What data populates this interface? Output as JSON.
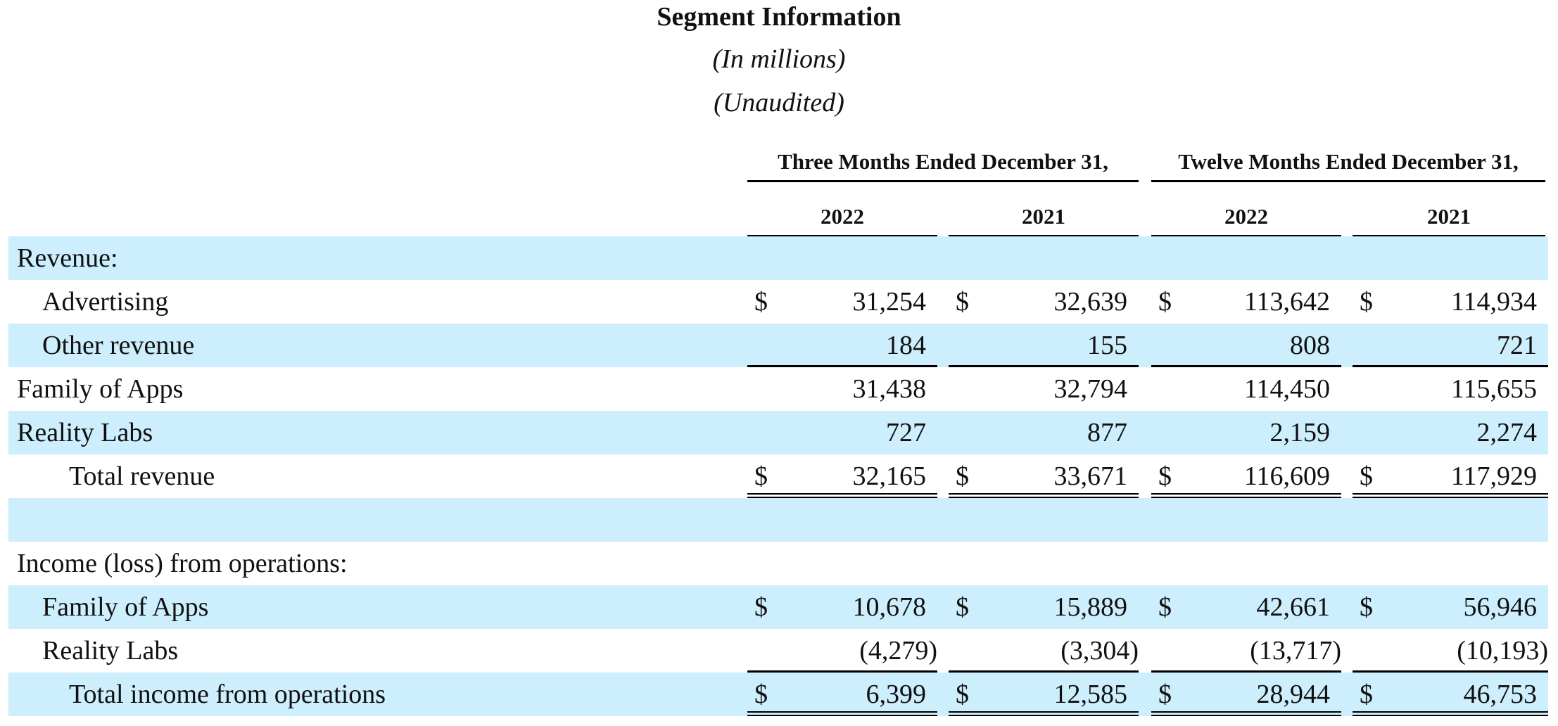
{
  "title": "Segment Information",
  "subtitle1": "(In millions)",
  "subtitle2": "(Unaudited)",
  "group_headers": [
    "Three Months Ended December 31,",
    "Twelve Months Ended December 31,"
  ],
  "year_headers": [
    "2022",
    "2021",
    "2022",
    "2021"
  ],
  "rows": [
    {
      "label": "Revenue:",
      "values": [
        "",
        "",
        "",
        ""
      ],
      "dollar": false
    },
    {
      "label": "Advertising",
      "values": [
        "31,254",
        "32,639",
        "113,642",
        "114,934"
      ],
      "dollar": true
    },
    {
      "label": "Other revenue",
      "values": [
        "184",
        "155",
        "808",
        "721"
      ],
      "dollar": false
    },
    {
      "label": "Family of Apps",
      "values": [
        "31,438",
        "32,794",
        "114,450",
        "115,655"
      ],
      "dollar": false
    },
    {
      "label": "Reality Labs",
      "values": [
        "727",
        "877",
        "2,159",
        "2,274"
      ],
      "dollar": false
    },
    {
      "label": "Total revenue",
      "values": [
        "32,165",
        "33,671",
        "116,609",
        "117,929"
      ],
      "dollar": true
    },
    {
      "label": "",
      "values": [
        "",
        "",
        "",
        ""
      ],
      "dollar": false
    },
    {
      "label": "Income (loss) from operations:",
      "values": [
        "",
        "",
        "",
        ""
      ],
      "dollar": false
    },
    {
      "label": "Family of Apps",
      "values": [
        "10,678",
        "15,889",
        "42,661",
        "56,946"
      ],
      "dollar": true
    },
    {
      "label": "Reality Labs",
      "values": [
        "(4,279)",
        "(3,304)",
        "(13,717)",
        "(10,193)"
      ],
      "dollar": false
    },
    {
      "label": "Total income from operations",
      "values": [
        "6,399",
        "12,585",
        "28,944",
        "46,753"
      ],
      "dollar": true
    }
  ],
  "currency_symbol": "$",
  "colors": {
    "row_shade": "#cdeefc",
    "rule": "#000000"
  }
}
